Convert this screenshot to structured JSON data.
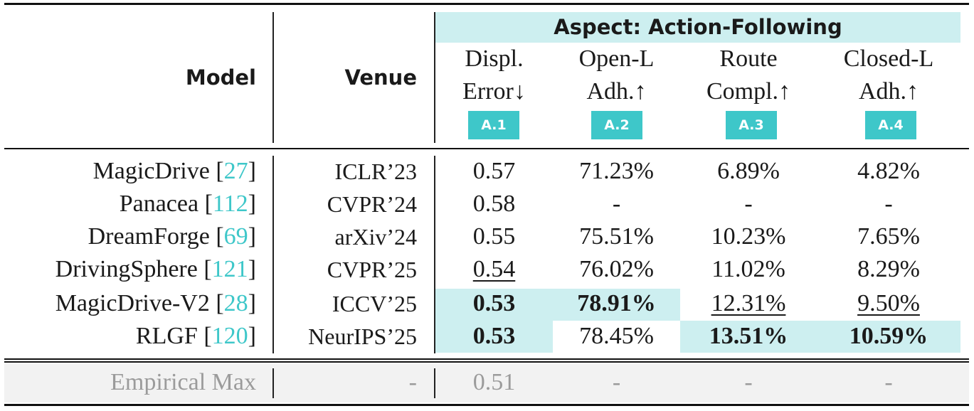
{
  "header": {
    "model": "Model",
    "venue": "Venue",
    "aspect": "Aspect: Action-Following",
    "columns": [
      {
        "line1": "Displ.",
        "line2": "Error↓",
        "badge": "A.1"
      },
      {
        "line1": "Open-L",
        "line2": "Adh.↑",
        "badge": "A.2"
      },
      {
        "line1": "Route",
        "line2": "Compl.↑",
        "badge": "A.3"
      },
      {
        "line1": "Closed-L",
        "line2": "Adh.↑",
        "badge": "A.4"
      }
    ]
  },
  "rows": [
    {
      "model": "MagicDrive",
      "ref": "27",
      "venue": "ICLR’23",
      "v1": "0.57",
      "v2": "71.23%",
      "v3": "6.89%",
      "v4": "4.82%"
    },
    {
      "model": "Panacea",
      "ref": "112",
      "venue": "CVPR’24",
      "v1": "0.58",
      "v2": "-",
      "v3": "-",
      "v4": "-"
    },
    {
      "model": "DreamForge",
      "ref": "69",
      "venue": "arXiv’24",
      "v1": "0.55",
      "v2": "75.51%",
      "v3": "10.23%",
      "v4": "7.65%"
    },
    {
      "model": "DrivingSphere",
      "ref": "121",
      "venue": "CVPR’25",
      "v1": "0.54",
      "v2": "76.02%",
      "v3": "11.02%",
      "v4": "8.29%"
    },
    {
      "model": "MagicDrive-V2",
      "ref": "28",
      "venue": "ICCV’25",
      "v1": "0.53",
      "v2": "78.91%",
      "v3": "12.31%",
      "v4": "9.50%"
    },
    {
      "model": "RLGF",
      "ref": "120",
      "venue": "NeurIPS’25",
      "v1": "0.53",
      "v2": "78.45%",
      "v3": "13.51%",
      "v4": "10.59%"
    }
  ],
  "footer": {
    "model": "Empirical Max",
    "venue": "-",
    "v1": "0.51",
    "v2": "-",
    "v3": "-",
    "v4": "-"
  },
  "colors": {
    "highlight": "#cdeff0",
    "accent": "#3ec7c9",
    "muted": "#9b9b9b"
  }
}
